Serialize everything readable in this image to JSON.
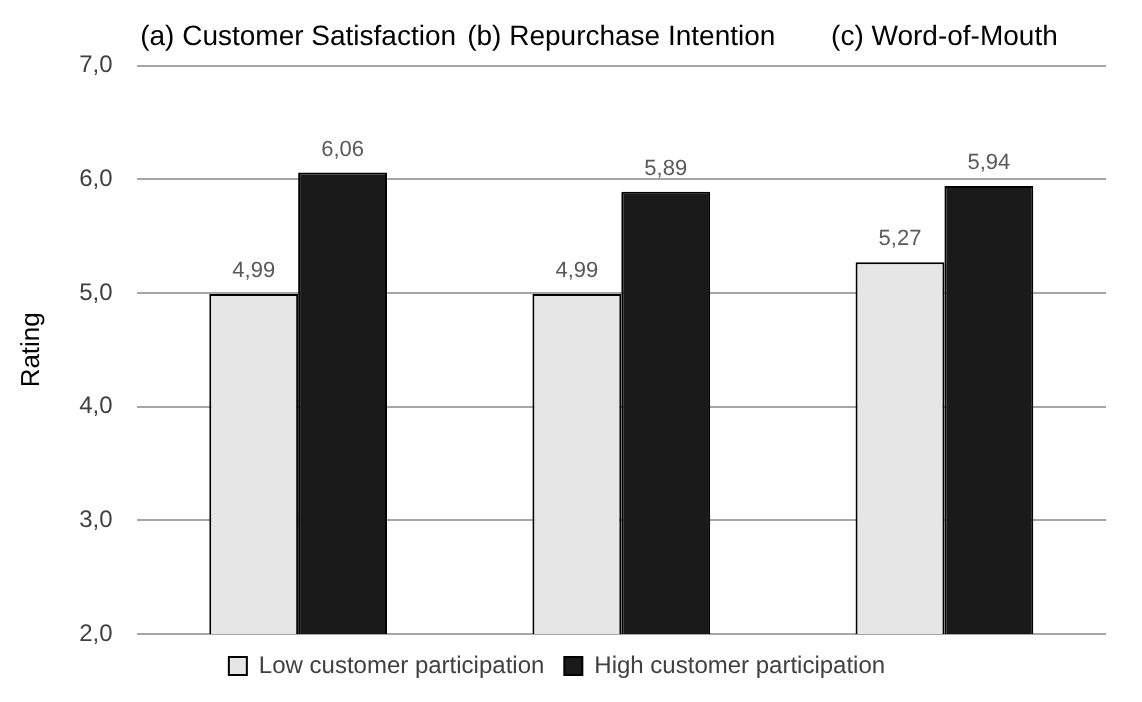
{
  "chart_data": {
    "type": "bar",
    "ylabel": "Rating",
    "categories": [
      "(a) Customer Satisfaction",
      "(b) Repurchase Intention",
      "(c) Word-of-Mouth"
    ],
    "series": [
      {
        "name": "Low customer participation",
        "color": "#e6e6e6",
        "values": [
          4.99,
          4.99,
          5.27
        ],
        "value_labels": [
          "4,99",
          "4,99",
          "5,27"
        ]
      },
      {
        "name": "High customer participation",
        "color": "#1a1a1a",
        "values": [
          6.06,
          5.89,
          5.94
        ],
        "value_labels": [
          "6,06",
          "5,89",
          "5,94"
        ]
      }
    ],
    "ylim": [
      2,
      7
    ],
    "yticks": [
      {
        "value": 2,
        "label": "2,0"
      },
      {
        "value": 3,
        "label": "3,0"
      },
      {
        "value": 4,
        "label": "4,0"
      },
      {
        "value": 5,
        "label": "5,0"
      },
      {
        "value": 6,
        "label": "6,0"
      },
      {
        "value": 7,
        "label": "7,0"
      }
    ],
    "grid": "y",
    "legend": "bottom"
  }
}
